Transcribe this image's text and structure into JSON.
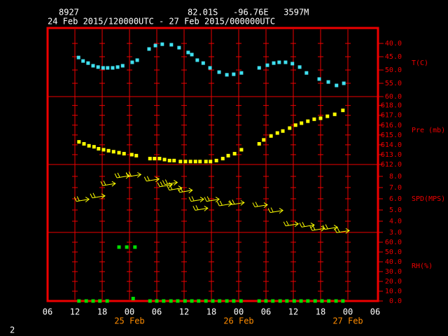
{
  "header": {
    "station": "8927",
    "location": "82.01S   -96.76E   3597M",
    "period": "24 Feb 2015/120000UTC - 27 Feb 2015/000000UTC"
  },
  "x_axis": {
    "xlim": [
      0,
      72
    ],
    "xticks": [
      {
        "value": 0,
        "label": "06"
      },
      {
        "value": 6,
        "label": "12"
      },
      {
        "value": 12,
        "label": "18"
      },
      {
        "value": 18,
        "label": "00"
      },
      {
        "value": 24,
        "label": "06"
      },
      {
        "value": 30,
        "label": "12"
      },
      {
        "value": 36,
        "label": "18"
      },
      {
        "value": 42,
        "label": "00"
      },
      {
        "value": 48,
        "label": "06"
      },
      {
        "value": 54,
        "label": "12"
      },
      {
        "value": 60,
        "label": "18"
      },
      {
        "value": 66,
        "label": "00"
      },
      {
        "value": 72,
        "label": "06"
      }
    ],
    "dates": [
      {
        "value": 18,
        "label": "25 Feb"
      },
      {
        "value": 42,
        "label": "26 Feb"
      },
      {
        "value": 66,
        "label": "27 Feb"
      }
    ]
  },
  "chart_data": [
    {
      "type": "scatter",
      "label": "T(C)",
      "color": "#40e0f0",
      "ylim": [
        -60,
        -34.2
      ],
      "yticks": [
        {
          "value": -40,
          "label": "-40.0"
        },
        {
          "value": -45,
          "label": "-45.0"
        },
        {
          "value": -50,
          "label": "-50.0"
        },
        {
          "value": -55,
          "label": "-55.0"
        },
        {
          "value": -60,
          "label": "-60.0"
        }
      ],
      "x": [
        6.8,
        7.8,
        8.9,
        10,
        11.1,
        12.2,
        13.2,
        14.3,
        15.4,
        16.5,
        18.6,
        19.7,
        22.3,
        23.7,
        25.2,
        27.2,
        28.9,
        30.9,
        31.7,
        32.9,
        34.2,
        35.7,
        37.7,
        39.4,
        40.9,
        42.6,
        46.5,
        48.3,
        49.7,
        50.9,
        52.3,
        53.8,
        55.4,
        56.9,
        59.7,
        61.7,
        63.5,
        65.1
      ],
      "values": [
        -45.3,
        -46.6,
        -47.4,
        -48.4,
        -48.9,
        -49.2,
        -49.2,
        -49.2,
        -48.9,
        -48.4,
        -47.1,
        -46.3,
        -42.1,
        -40.8,
        -40.3,
        -40.5,
        -41.6,
        -43.4,
        -44.2,
        -46.3,
        -47.4,
        -49.2,
        -50.8,
        -51.8,
        -51.6,
        -51.1,
        -49.2,
        -48.2,
        -47.4,
        -47.1,
        -47.1,
        -47.6,
        -48.9,
        -51.1,
        -53.4,
        -54.5,
        -55.8,
        -55.0
      ]
    },
    {
      "type": "scatter",
      "label": "Pre (mb)",
      "color": "#ffff00",
      "ylim": [
        612,
        618.9
      ],
      "yticks": [
        {
          "value": 618,
          "label": "618.0"
        },
        {
          "value": 617,
          "label": "617.0"
        },
        {
          "value": 616,
          "label": "616.0"
        },
        {
          "value": 615,
          "label": "615.0"
        },
        {
          "value": 614,
          "label": "614.0"
        },
        {
          "value": 613,
          "label": "613.0"
        },
        {
          "value": 612,
          "label": "612.0"
        }
      ],
      "x": [
        6.9,
        8,
        9.1,
        10.2,
        11.2,
        12.3,
        13.4,
        14.5,
        15.7,
        16.8,
        18.5,
        19.5,
        22.5,
        23.5,
        24.6,
        25.7,
        26.8,
        27.8,
        29.2,
        30.3,
        31.4,
        32.5,
        33.5,
        34.8,
        35.8,
        37.1,
        38.5,
        39.7,
        41.1,
        42.6,
        46.5,
        47.5,
        49.1,
        50.5,
        51.7,
        53.2,
        54.5,
        55.8,
        57.2,
        58.6,
        60,
        61.5,
        63.1,
        64.9
      ],
      "values": [
        614.3,
        614.1,
        613.9,
        613.8,
        613.6,
        613.5,
        613.4,
        613.3,
        613.2,
        613.1,
        613.0,
        612.9,
        612.6,
        612.6,
        612.6,
        612.5,
        612.4,
        612.4,
        612.3,
        612.3,
        612.3,
        612.3,
        612.3,
        612.3,
        612.3,
        612.4,
        612.6,
        612.9,
        613.1,
        613.5,
        614.1,
        614.5,
        614.9,
        615.2,
        615.4,
        615.7,
        616.0,
        616.2,
        616.4,
        616.6,
        616.7,
        616.9,
        617.1,
        617.5
      ]
    },
    {
      "type": "barbs",
      "label": "SPD(MPS)",
      "color": "#ffff00",
      "ylim": [
        3,
        9.06
      ],
      "yticks": [
        {
          "value": 8,
          "label": "8.0"
        },
        {
          "value": 7,
          "label": "7.0"
        },
        {
          "value": 6,
          "label": "6.0"
        },
        {
          "value": 5,
          "label": "5.0"
        },
        {
          "value": 4,
          "label": "4.0"
        },
        {
          "value": 3,
          "label": "3.0"
        }
      ],
      "x": [
        8.8,
        12.3,
        14.6,
        17.7,
        20.2,
        24.2,
        27.1,
        28.2,
        29.2,
        31.5,
        34,
        34.9,
        37.4,
        40.2,
        42.9,
        48,
        51.4,
        54.8,
        58.3,
        60.6,
        63.4,
        66
      ],
      "values": [
        5.9,
        6.2,
        7.3,
        8.0,
        8.1,
        7.7,
        7.2,
        7.4,
        6.9,
        6.7,
        5.9,
        5.1,
        5.9,
        5.5,
        5.6,
        5.4,
        4.9,
        3.7,
        3.6,
        3.3,
        3.4,
        3.1
      ]
    },
    {
      "type": "scatter",
      "label": "RH(%)",
      "color": "#00dd00",
      "ylim": [
        0,
        70
      ],
      "yticks": [
        {
          "value": 60,
          "label": "60.0"
        },
        {
          "value": 50,
          "label": "50.0"
        },
        {
          "value": 40,
          "label": "40.0"
        },
        {
          "value": 30,
          "label": "30.0"
        },
        {
          "value": 20,
          "label": "20.0"
        },
        {
          "value": 10,
          "label": "10.0"
        },
        {
          "value": 0,
          "label": "0.0"
        }
      ],
      "x": [
        15.7,
        17.4,
        19.2,
        6.9,
        8.5,
        10,
        11.5,
        13.1,
        18.8,
        22.5,
        24,
        25.5,
        27.1,
        28.6,
        30.2,
        31.7,
        33.2,
        34.8,
        36.3,
        37.8,
        39.4,
        40.9,
        42.5,
        46.5,
        48,
        49.5,
        51.1,
        52.6,
        54.2,
        55.7,
        57.2,
        58.8,
        60.3,
        61.8,
        63.4,
        64.9
      ],
      "values": [
        55,
        55,
        55,
        0,
        0,
        0,
        0,
        0,
        2.5,
        0,
        0,
        0,
        0,
        0,
        0,
        0,
        0,
        0,
        0,
        0,
        0,
        0,
        0,
        0,
        0,
        0,
        0,
        0,
        0,
        0,
        0,
        0,
        0,
        0,
        0,
        0
      ]
    }
  ],
  "footer": "2"
}
